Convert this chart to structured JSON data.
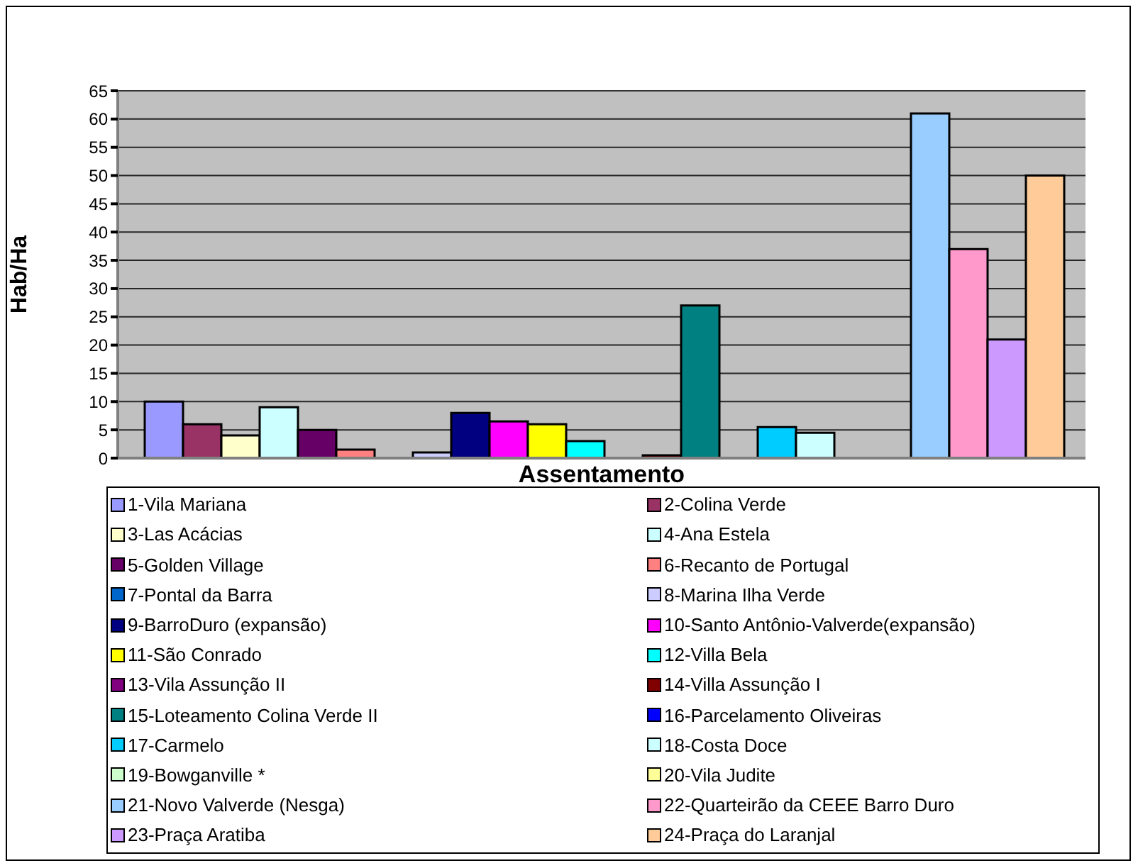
{
  "chart_data": {
    "type": "bar",
    "xlabel": "Assentamento",
    "ylabel": "Hab/Ha",
    "categories": [
      null
    ],
    "ylim": [
      0,
      65
    ],
    "yticks": [
      0,
      5,
      10,
      15,
      20,
      25,
      30,
      35,
      40,
      45,
      50,
      55,
      60,
      65
    ],
    "grid": "y",
    "legend": "bottom",
    "series": [
      {
        "name": "1-Vila Mariana",
        "color": "#9999ff",
        "values": [
          10
        ]
      },
      {
        "name": "2-Colina Verde",
        "color": "#993366",
        "values": [
          6
        ]
      },
      {
        "name": "3-Las Acácias",
        "color": "#ffffcc",
        "values": [
          4
        ]
      },
      {
        "name": "4-Ana Estela",
        "color": "#ccffff",
        "values": [
          9
        ]
      },
      {
        "name": "5-Golden Village",
        "color": "#660066",
        "values": [
          5
        ]
      },
      {
        "name": "6-Recanto de Portugal",
        "color": "#ff8080",
        "values": [
          1.5
        ]
      },
      {
        "name": "7-Pontal da Barra",
        "color": "#0066cc",
        "values": [
          0
        ]
      },
      {
        "name": "8-Marina Ilha Verde",
        "color": "#ccccff",
        "values": [
          1
        ]
      },
      {
        "name": "9-BarroDuro (expansão)",
        "color": "#000080",
        "values": [
          8
        ]
      },
      {
        "name": "10-Santo Antônio-Valverde(expansão)",
        "color": "#ff00ff",
        "values": [
          6.5
        ]
      },
      {
        "name": "11-São Conrado",
        "color": "#ffff00",
        "values": [
          6
        ]
      },
      {
        "name": "12-Villa Bela",
        "color": "#00ffff",
        "values": [
          3
        ]
      },
      {
        "name": "13-Vila Assunção II",
        "color": "#800080",
        "values": [
          0
        ]
      },
      {
        "name": "14-Villa Assunção I",
        "color": "#800000",
        "values": [
          0.5
        ]
      },
      {
        "name": "15-Loteamento Colina Verde II",
        "color": "#008080",
        "values": [
          27
        ]
      },
      {
        "name": "16-Parcelamento Oliveiras",
        "color": "#0000ff",
        "values": [
          0
        ]
      },
      {
        "name": "17-Carmelo",
        "color": "#00ccff",
        "values": [
          5.5
        ]
      },
      {
        "name": "18-Costa Doce",
        "color": "#ccffff",
        "values": [
          4.5
        ]
      },
      {
        "name": "19-Bowganville *",
        "color": "#ccffcc",
        "values": [
          0
        ]
      },
      {
        "name": "20-Vila Judite",
        "color": "#ffff99",
        "values": [
          0
        ]
      },
      {
        "name": "21-Novo Valverde (Nesga)",
        "color": "#99ccff",
        "values": [
          61
        ]
      },
      {
        "name": "22-Quarteirão da CEEE Barro Duro",
        "color": "#ff99cc",
        "values": [
          37
        ]
      },
      {
        "name": "23-Praça Aratiba",
        "color": "#cc99ff",
        "values": [
          21
        ]
      },
      {
        "name": "24-Praça do Laranjal",
        "color": "#ffcc99",
        "values": [
          50
        ]
      }
    ]
  }
}
